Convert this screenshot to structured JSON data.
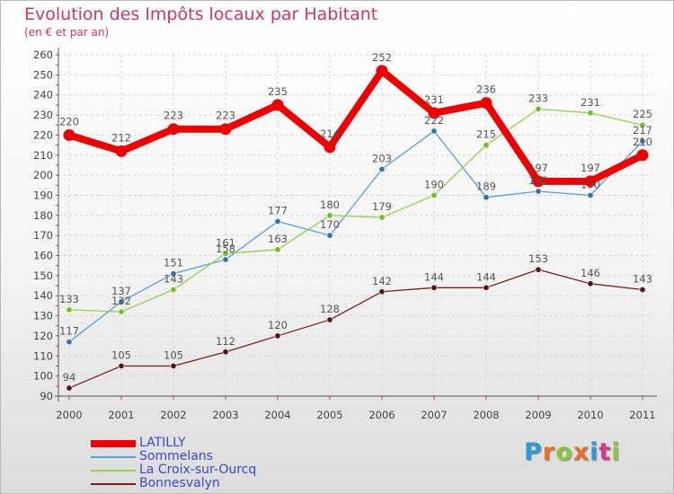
{
  "title": "Evolution des Impôts locaux par Habitant",
  "subtitle": "(en € et par an)",
  "logo": {
    "text": "Proxiti",
    "colors": [
      "#2e9ad6",
      "#e8702a",
      "#8cc63f",
      "#e8702a",
      "#2e9ad6",
      "#d43a8a",
      "#8cc63f"
    ]
  },
  "chart_data": {
    "type": "line",
    "categories": [
      "2000",
      "2001",
      "2002",
      "2003",
      "2004",
      "2005",
      "2006",
      "2007",
      "2008",
      "2009",
      "2010",
      "2011"
    ],
    "ylim": [
      90,
      260
    ],
    "yticks": [
      90,
      100,
      110,
      120,
      130,
      140,
      150,
      160,
      170,
      180,
      190,
      200,
      210,
      220,
      230,
      240,
      250,
      260
    ],
    "grid": true,
    "legend_position": "bottom-left",
    "series": [
      {
        "name": "Bonnesvalyn",
        "color": "#7a1f1f",
        "marker": "#5a1515",
        "width": 1.3,
        "values": [
          94,
          105,
          105,
          112,
          120,
          128,
          142,
          144,
          144,
          153,
          146,
          143
        ]
      },
      {
        "name": "Sommelans",
        "color": "#5b9bd5",
        "marker": "#2e75b6",
        "width": 1.3,
        "values": [
          117,
          137,
          151,
          158,
          177,
          170,
          203,
          222,
          189,
          192,
          190,
          217
        ]
      },
      {
        "name": "La Croix-sur-Ourcq",
        "color": "#92d050",
        "marker": "#6fbf2a",
        "width": 1.3,
        "values": [
          133,
          132,
          143,
          161,
          163,
          180,
          179,
          190,
          215,
          233,
          231,
          225
        ]
      },
      {
        "name": "LATILLY",
        "color": "#ee0000",
        "marker": "#ee0000",
        "width": 8,
        "values": [
          220,
          212,
          223,
          223,
          235,
          214,
          252,
          231,
          236,
          197,
          197,
          210
        ]
      }
    ],
    "legend": [
      "LATILLY",
      "Sommelans",
      "La Croix-sur-Ourcq",
      "Bonnesvalyn"
    ]
  }
}
